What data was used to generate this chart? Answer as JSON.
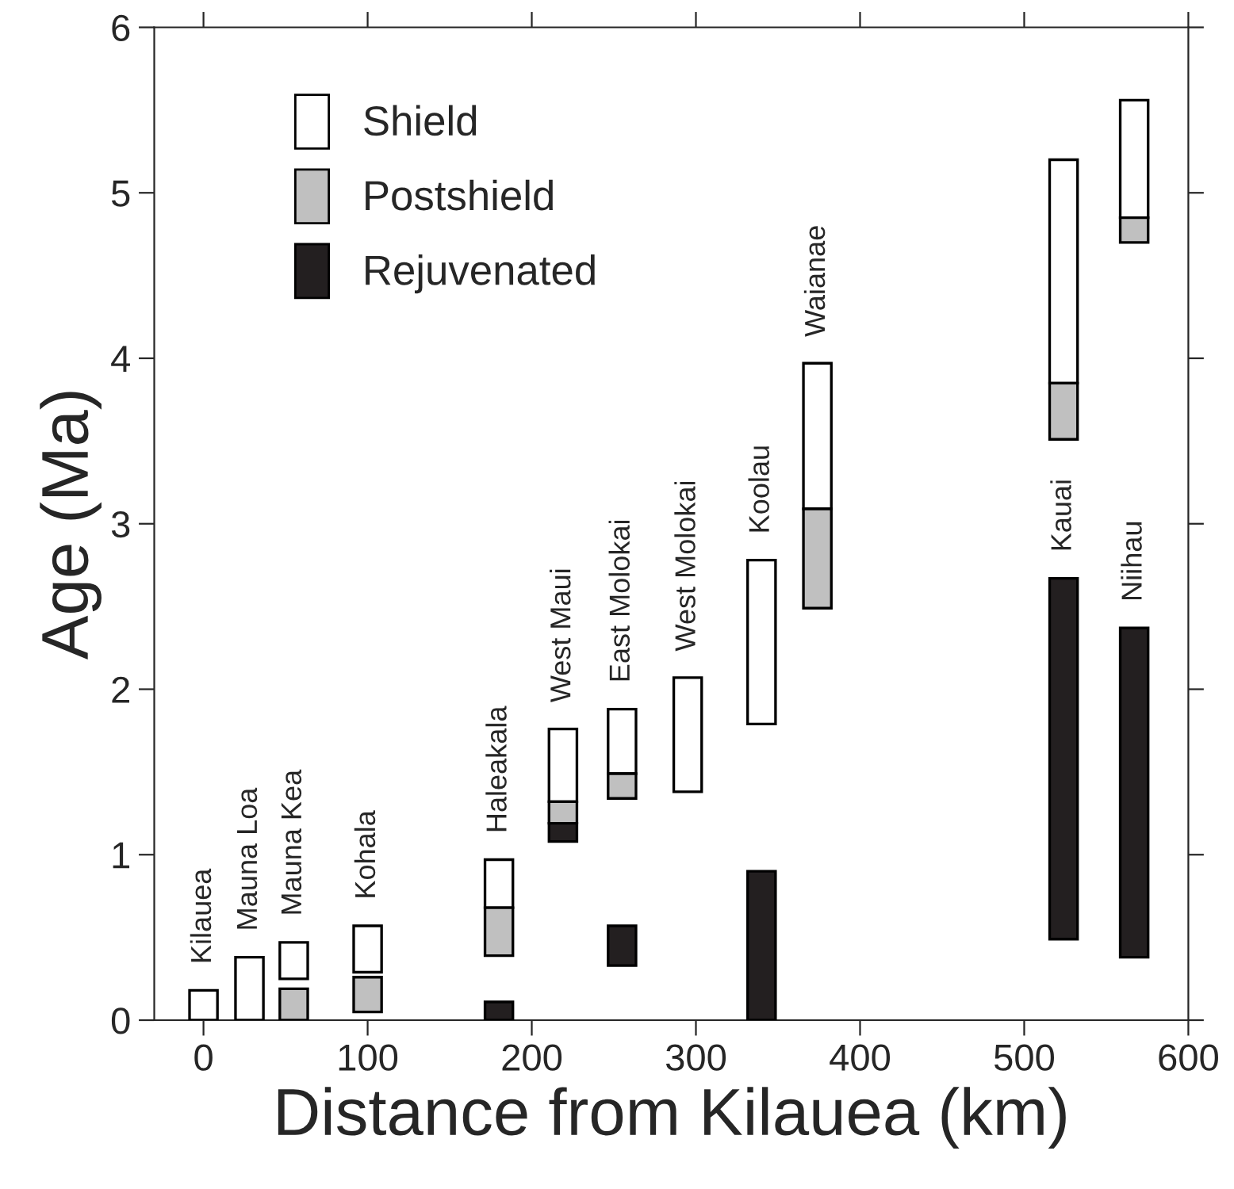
{
  "chart_data": {
    "type": "bar",
    "xlabel": "Distance from Kilauea (km)",
    "ylabel": "Age (Ma)",
    "xlim": [
      -30,
      600
    ],
    "xticks": [
      0,
      100,
      200,
      300,
      400,
      500,
      600
    ],
    "ylim": [
      0,
      6
    ],
    "yticks": [
      0,
      1,
      2,
      3,
      4,
      5,
      6
    ],
    "grid": false,
    "legend": "top left",
    "series": [
      {
        "name": "Shield",
        "color": "#ffffff",
        "x": [
          0,
          28,
          55,
          100,
          180,
          219,
          255,
          295,
          340,
          374,
          524,
          567
        ],
        "base": [
          0,
          0,
          0.25,
          0.29,
          0.68,
          1.32,
          1.49,
          1.38,
          1.79,
          3.09,
          3.85,
          4.85
        ],
        "values": [
          0.18,
          0.38,
          0.22,
          0.28,
          0.29,
          0.44,
          0.39,
          0.69,
          0.99,
          0.88,
          1.35,
          0.71
        ]
      },
      {
        "name": "Postshield",
        "color": "#c0c0c0",
        "x": [
          55,
          100,
          180,
          219,
          255,
          374,
          524,
          567
        ],
        "base": [
          0,
          0.05,
          0.39,
          1.19,
          1.34,
          2.49,
          3.51,
          4.7
        ],
        "values": [
          0.19,
          0.21,
          0.29,
          0.13,
          0.15,
          0.6,
          0.34,
          0.15
        ]
      },
      {
        "name": "Rejuvenated",
        "color": "#231f20",
        "x": [
          180,
          219,
          255,
          340,
          524,
          567
        ],
        "base": [
          0,
          1.08,
          0.33,
          0,
          0.49,
          0.38
        ],
        "values": [
          0.11,
          0.11,
          0.24,
          0.9,
          2.18,
          1.99
        ]
      }
    ],
    "annotations": [
      {
        "text": "Kilauea",
        "x": 0,
        "y": 0.18
      },
      {
        "text": "Mauna Loa",
        "x": 28,
        "y": 0.38
      },
      {
        "text": "Mauna Kea",
        "x": 55,
        "y": 0.47
      },
      {
        "text": "Kohala",
        "x": 100,
        "y": 0.57
      },
      {
        "text": "Haleakala",
        "x": 180,
        "y": 0.97
      },
      {
        "text": "West Maui",
        "x": 219,
        "y": 1.76
      },
      {
        "text": "East Molokai",
        "x": 255,
        "y": 1.88
      },
      {
        "text": "West Molokai",
        "x": 295,
        "y": 2.07
      },
      {
        "text": "Koolau",
        "x": 340,
        "y": 2.78
      },
      {
        "text": "Waianae",
        "x": 374,
        "y": 3.97
      },
      {
        "text": "Kauai",
        "x": 524,
        "y": 2.67
      },
      {
        "text": "Niihau",
        "x": 567,
        "y": 2.37
      }
    ]
  }
}
